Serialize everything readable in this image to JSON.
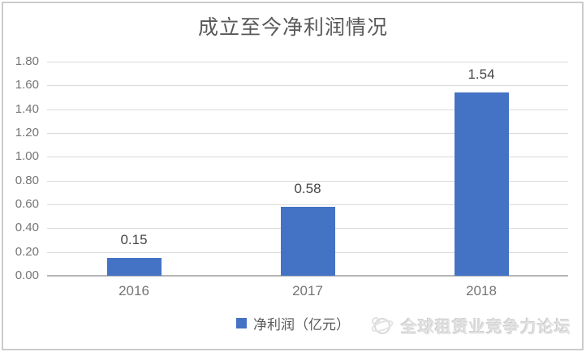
{
  "title": {
    "text": "成立至今净利润情况"
  },
  "chart_data": {
    "type": "bar",
    "title": "成立至今净利润情况",
    "categories": [
      "2016",
      "2017",
      "2018"
    ],
    "series": [
      {
        "name": "净利润（亿元）",
        "values": [
          0.15,
          0.58,
          1.54
        ]
      }
    ],
    "data_labels": [
      "0.15",
      "0.58",
      "1.54"
    ],
    "xlabel": "",
    "ylabel": "",
    "ylim": [
      0,
      1.8
    ],
    "y_tick_labels": [
      "0.00",
      "0.20",
      "0.40",
      "0.60",
      "0.80",
      "1.00",
      "1.20",
      "1.40",
      "1.60",
      "1.80"
    ],
    "grid": true,
    "legend_position": "bottom",
    "bar_color": "#4472C4"
  },
  "legend": {
    "label": "净利润（亿元）"
  },
  "watermark": {
    "text": "全球租赁业竞争力论坛",
    "icon": "globe-swoosh-icon"
  },
  "colors": {
    "bar": "#4472C4",
    "title_text": "#595959",
    "axis_text": "#757575",
    "data_label_text": "#464646",
    "gridline": "#dadada",
    "axis_line": "#b5b5b5",
    "frame_border": "#cbcbcb",
    "watermark_text": "#e2e2e2",
    "background": "#ffffff"
  }
}
